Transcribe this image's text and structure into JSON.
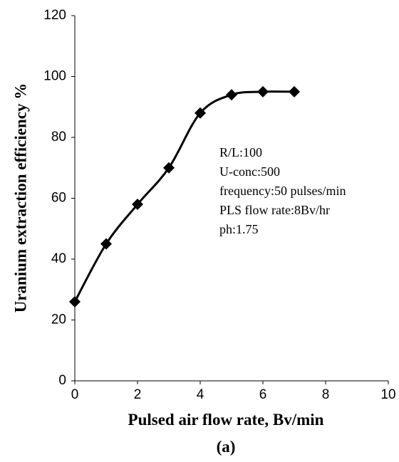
{
  "chart_data": {
    "type": "line",
    "x_label": "Pulsed air flow rate, Bv/min",
    "y_label": "Uranium  extraction efficiency %",
    "caption": "(a)",
    "annotations": [
      "R/L:100",
      "U-conc:500",
      "frequency:50  pulses/min",
      "PLS flow rate:8Bv/hr",
      "ph:1.75"
    ],
    "x": [
      0,
      1,
      2,
      3,
      4,
      5,
      6,
      7
    ],
    "series": [
      {
        "color": "#000000",
        "values": [
          26,
          45,
          58,
          70,
          88,
          94,
          95,
          95
        ]
      }
    ],
    "xlim": [
      0,
      10
    ],
    "xticks": [
      0,
      2,
      4,
      6,
      8,
      10
    ],
    "ylim": [
      0,
      120
    ],
    "yticks": [
      0,
      20,
      40,
      60,
      80,
      100,
      120
    ],
    "smooth": true,
    "marker": "diamond",
    "grid": false
  }
}
